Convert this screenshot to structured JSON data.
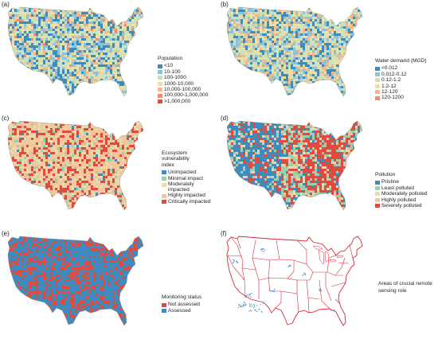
{
  "panels": [
    {
      "id": "a",
      "label": "(a)",
      "style": "choropleth",
      "weights": [
        0.24,
        0.16,
        0.34,
        0.14,
        0.08,
        0.04
      ],
      "west_bias": 0,
      "legend": {
        "title": "Population",
        "items": [
          {
            "label": "<10",
            "color": "#3f8bbd"
          },
          {
            "label": "10-100",
            "color": "#8ec2d9"
          },
          {
            "label": "100-1000",
            "color": "#cfe2b6"
          },
          {
            "label": "1000-10,000",
            "color": "#f2dfa6"
          },
          {
            "label": "10,000-100,000",
            "color": "#f4b98a"
          },
          {
            "label": "100,000-1,000,000",
            "color": "#ef8d70"
          },
          {
            "label": ">1,000,000",
            "color": "#e04a3f"
          }
        ]
      }
    },
    {
      "id": "b",
      "label": "(b)",
      "style": "choropleth",
      "weights": [
        0.2,
        0.2,
        0.3,
        0.16,
        0.14
      ],
      "west_bias": 0,
      "legend": {
        "title": "Water demand (MGD)",
        "items": [
          {
            "label": "<0.012",
            "color": "#3f8bbd"
          },
          {
            "label": "0.012-0.12",
            "color": "#8ec2d9"
          },
          {
            "label": "0.12-1.2",
            "color": "#cfe2b6"
          },
          {
            "label": "1.2-12",
            "color": "#f2dfa6"
          },
          {
            "label": "12-120",
            "color": "#f4b98a"
          },
          {
            "label": "120-1200",
            "color": "#ef8d70"
          }
        ]
      }
    },
    {
      "id": "c",
      "label": "(c)",
      "style": "choropleth",
      "weights": [
        0.02,
        0.06,
        0.18,
        0.48,
        0.26
      ],
      "west_bias": 0,
      "legend": {
        "title": "Ecosystem vulnerability index",
        "items": [
          {
            "label": "Unimpacted",
            "color": "#3f8bbd"
          },
          {
            "label": "Minimal impact",
            "color": "#9dcfae"
          },
          {
            "label": "Moderately impacted",
            "color": "#e6dcae"
          },
          {
            "label": "Highly impacted",
            "color": "#f2c79b"
          },
          {
            "label": "Critically impacted",
            "color": "#e04a3f"
          }
        ]
      }
    },
    {
      "id": "d",
      "label": "(d)",
      "style": "choropleth",
      "weights": [
        0.14,
        0.3,
        0.1,
        0.14,
        0.32
      ],
      "west_bias": 1,
      "legend": {
        "title": "Pollution",
        "items": [
          {
            "label": "Pristine",
            "color": "#3f8bbd"
          },
          {
            "label": "Least polluted",
            "color": "#9dcfae"
          },
          {
            "label": "Moderately polluted",
            "color": "#e6dcae"
          },
          {
            "label": "Highly polluted",
            "color": "#f2c79b"
          },
          {
            "label": "Severely polluted",
            "color": "#e04a3f"
          }
        ]
      }
    },
    {
      "id": "e",
      "label": "(e)",
      "style": "choropleth",
      "weights": [
        0.32,
        0.68
      ],
      "west_bias": 0,
      "legend": {
        "title": "Monitoring status",
        "items": [
          {
            "label": "Not assessed",
            "color": "#e04a3f"
          },
          {
            "label": "Assessed",
            "color": "#3f8bbd"
          }
        ]
      }
    },
    {
      "id": "f",
      "label": "(f)",
      "style": "outline",
      "outline_color": "#d8283a",
      "legend": {
        "title": "Areas of crucial remote sensing role",
        "items": []
      }
    }
  ]
}
